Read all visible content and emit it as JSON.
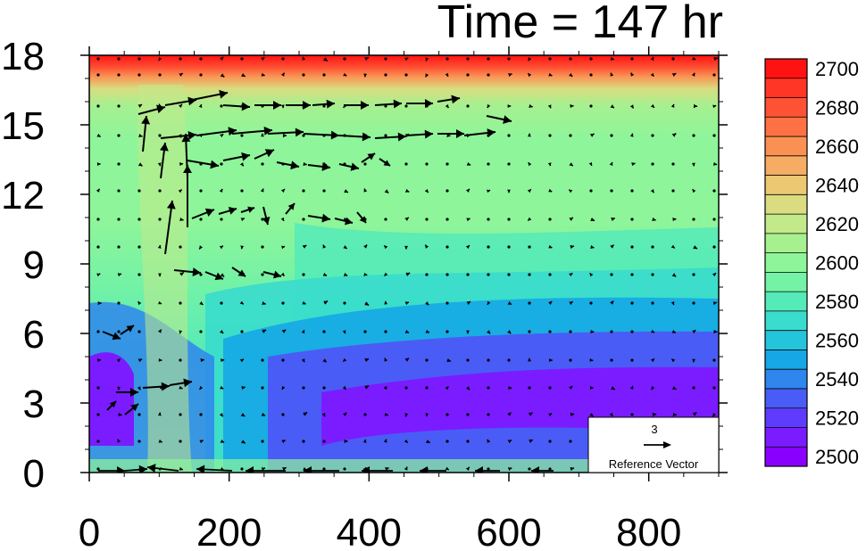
{
  "title": "Time = 147 hr",
  "chart_data": {
    "type": "heatmap",
    "title": "Time = 147 hr",
    "xlabel": "",
    "ylabel": "",
    "xlim": [
      0,
      900
    ],
    "ylim": [
      0,
      18
    ],
    "x_ticks": [
      "0",
      "200",
      "400",
      "600",
      "800"
    ],
    "y_ticks": [
      "0",
      "3",
      "6",
      "9",
      "12",
      "15",
      "18"
    ],
    "x_tick_values": [
      0,
      200,
      400,
      600,
      800
    ],
    "y_tick_values": [
      0,
      3,
      6,
      9,
      12,
      15,
      18
    ],
    "colorbar": {
      "levels": [
        2500,
        2510,
        2520,
        2530,
        2540,
        2550,
        2560,
        2570,
        2580,
        2590,
        2600,
        2610,
        2620,
        2630,
        2640,
        2650,
        2660,
        2670,
        2680,
        2690,
        2700
      ],
      "labels": [
        "2700",
        "2680",
        "2660",
        "2640",
        "2620",
        "2600",
        "2580",
        "2560",
        "2540",
        "2520",
        "2500"
      ],
      "label_values": [
        2700,
        2680,
        2660,
        2640,
        2620,
        2600,
        2580,
        2560,
        2540,
        2520,
        2500
      ],
      "colors": [
        "#8a00ff",
        "#7a1cff",
        "#5f3bff",
        "#4a5cf6",
        "#2f86ec",
        "#15a7e6",
        "#24c4dc",
        "#39dccd",
        "#55eab8",
        "#74f2a6",
        "#8ef59a",
        "#a6f090",
        "#c2e98a",
        "#d9dc80",
        "#ecc873",
        "#f6ad63",
        "#fa9153",
        "#fd7144",
        "#fe5235",
        "#ff3526",
        "#ff1212"
      ]
    },
    "reference_vector": {
      "magnitude": "3",
      "label": "Reference Vector"
    }
  }
}
